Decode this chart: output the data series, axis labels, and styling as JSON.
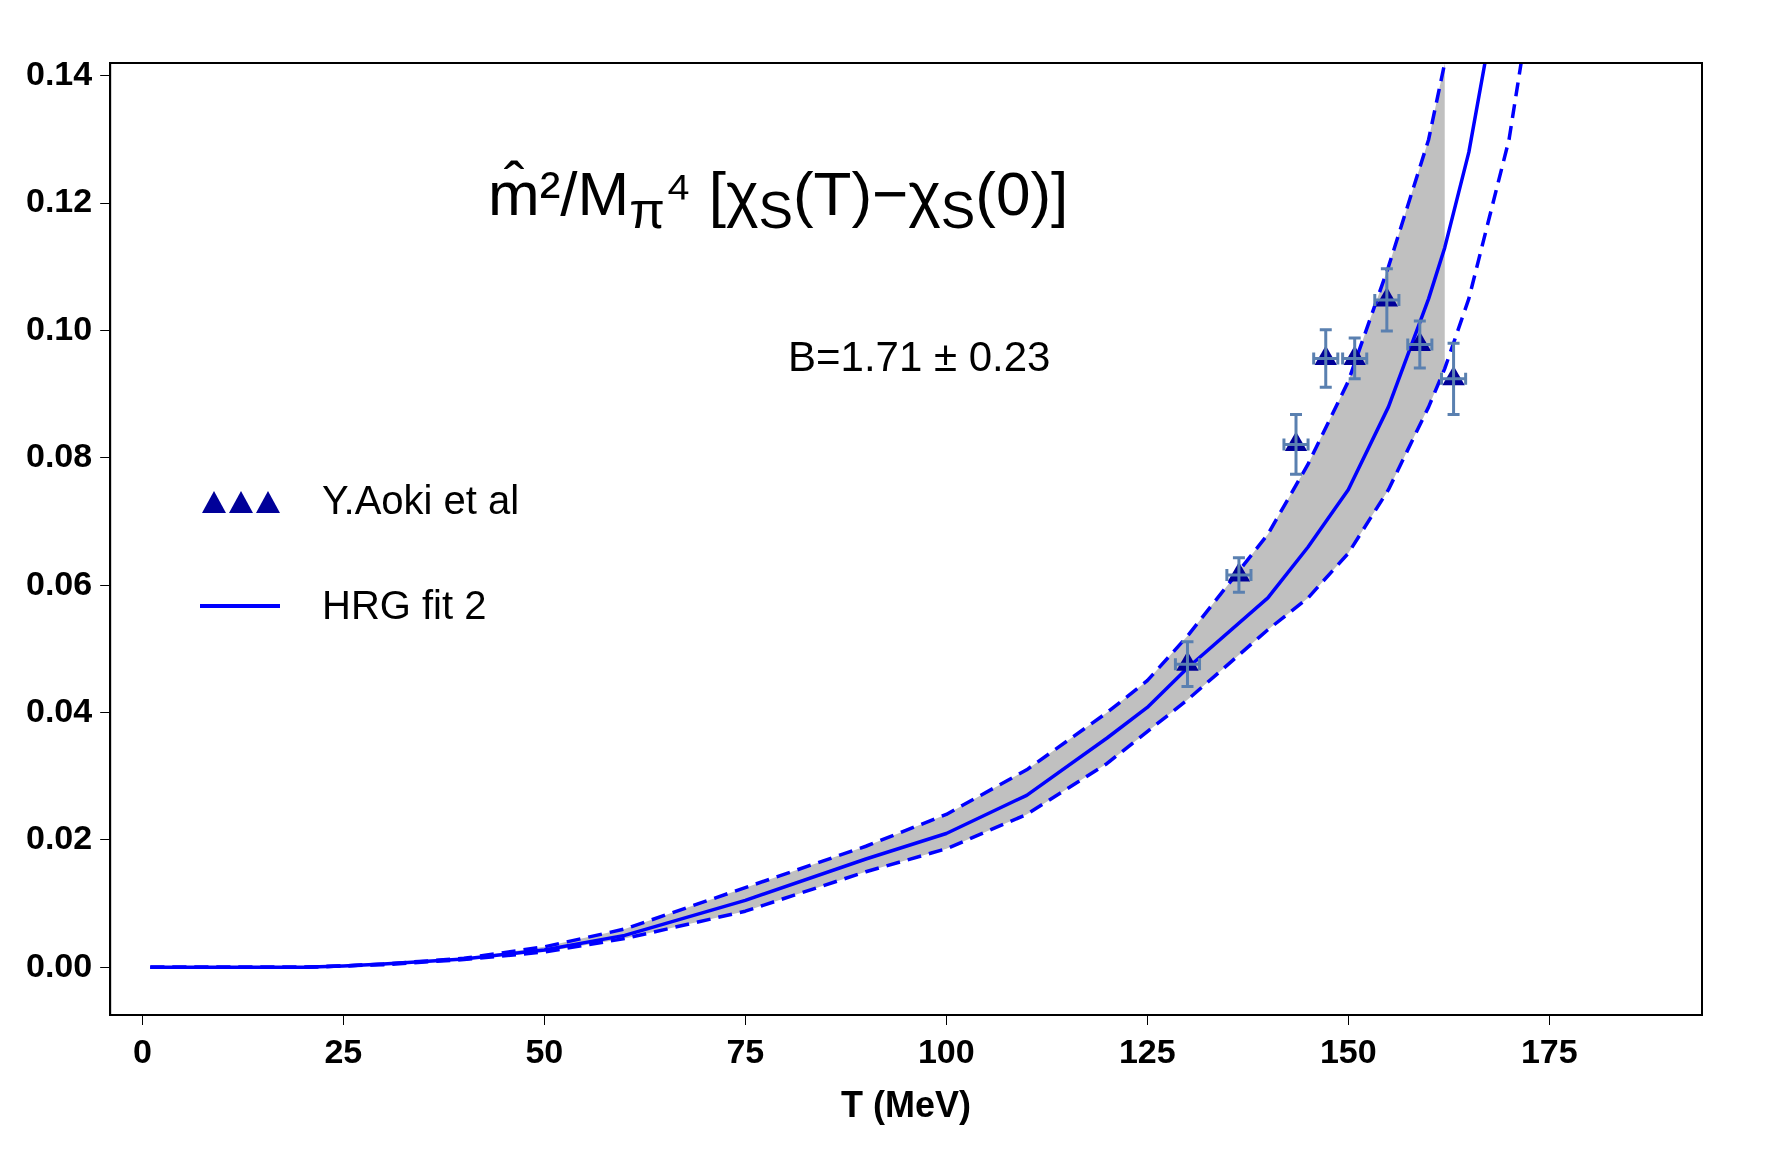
{
  "chart_data": {
    "type": "line",
    "title": "m̂²/M$_{π}$⁴ [χ$_{S}$(T)−χ$_{S}$(0)]",
    "xlabel": "T (MeV)",
    "annotations": [
      "B=1.71 ± 0.23"
    ],
    "x": [
      1,
      10,
      20,
      25,
      30,
      40,
      50,
      60,
      75,
      90,
      100,
      110,
      120,
      125,
      130,
      140,
      145,
      150,
      155,
      160,
      162,
      165,
      167
    ],
    "series": [
      {
        "name": "Y.Aoki et al",
        "type": "scatter",
        "marker": "triangle",
        "color": "#000099",
        "x": [
          130.0,
          136.4,
          143.5,
          147.2,
          150.8,
          154.8,
          158.9,
          163.1
        ],
        "values": [
          0.0476,
          0.0616,
          0.0821,
          0.0956,
          0.0956,
          0.1048,
          0.0978,
          0.0924
        ],
        "errors": [
          0.0035,
          0.0027,
          0.0047,
          0.0045,
          0.0032,
          0.0049,
          0.0037,
          0.0056
        ],
        "xerrors": [
          1.5,
          1.5,
          1.5,
          1.5,
          1.5,
          1.5,
          1.5,
          1.5
        ]
      },
      {
        "name": "HRG fit 2",
        "color": "#0000ff",
        "line_style": "solid",
        "marker": "none",
        "values": [
          0,
          0,
          0,
          0.0002,
          0.0005,
          0.0013,
          0.0027,
          0.005,
          0.0105,
          0.017,
          0.021,
          0.027,
          0.036,
          0.0408,
          0.047,
          0.058,
          0.066,
          0.075,
          0.088,
          0.105,
          0.113,
          0.128,
          0.142
        ],
        "lower": [
          0,
          0,
          0,
          0.0002,
          0.0004,
          0.0012,
          0.0024,
          0.0045,
          0.0088,
          0.015,
          0.0186,
          0.024,
          0.032,
          0.037,
          0.042,
          0.053,
          0.058,
          0.065,
          0.075,
          0.088,
          0.094,
          null,
          null
        ],
        "upper": [
          0,
          0,
          0,
          0.0002,
          0.0005,
          0.0014,
          0.0032,
          0.006,
          0.0125,
          0.019,
          0.024,
          0.031,
          0.04,
          0.045,
          0.052,
          0.068,
          0.079,
          0.092,
          0.11,
          0.13,
          0.142,
          null,
          null
        ]
      },
      {
        "color": "#0000ff",
        "line_style": "dashed",
        "marker": "none",
        "x": [
          1,
          10,
          20,
          25,
          30,
          40,
          50,
          60,
          75,
          90,
          100,
          110,
          120,
          125,
          130,
          140,
          145,
          150,
          155,
          160,
          162
        ],
        "values": [
          0,
          0,
          0,
          0.0002,
          0.0005,
          0.0014,
          0.0032,
          0.006,
          0.0125,
          0.019,
          0.024,
          0.031,
          0.04,
          0.045,
          0.052,
          0.068,
          0.079,
          0.092,
          0.11,
          0.13,
          0.142
        ]
      },
      {
        "color": "#0000ff",
        "line_style": "dashed",
        "marker": "none",
        "x": [
          1,
          10,
          20,
          25,
          30,
          40,
          50,
          60,
          75,
          90,
          100,
          110,
          120,
          125,
          130,
          140,
          145,
          150,
          155,
          160,
          162,
          165,
          170,
          171.5
        ],
        "values": [
          0,
          0,
          0,
          0.0002,
          0.0004,
          0.0012,
          0.0024,
          0.0045,
          0.0088,
          0.015,
          0.0186,
          0.024,
          0.032,
          0.037,
          0.042,
          0.053,
          0.058,
          0.065,
          0.075,
          0.088,
          0.094,
          0.105,
          0.13,
          0.142
        ]
      }
    ],
    "xlim": [
      -4,
      194
    ],
    "xticks": [
      0,
      25,
      50,
      75,
      100,
      125,
      150,
      175
    ],
    "ylim": [
      -0.0075,
      0.142
    ],
    "yticks": [
      {
        "value": 0,
        "label": "0.00"
      },
      {
        "value": 0.02,
        "label": "0.02"
      },
      {
        "value": 0.04,
        "label": "0.04"
      },
      {
        "value": 0.06,
        "label": "0.06"
      },
      {
        "value": 0.08,
        "label": "0.08"
      },
      {
        "value": 0.1,
        "label": "0.10"
      },
      {
        "value": 0.12,
        "label": "0.12"
      },
      {
        "value": 0.14,
        "label": "0.14"
      }
    ],
    "grid": false,
    "legend": "left"
  }
}
